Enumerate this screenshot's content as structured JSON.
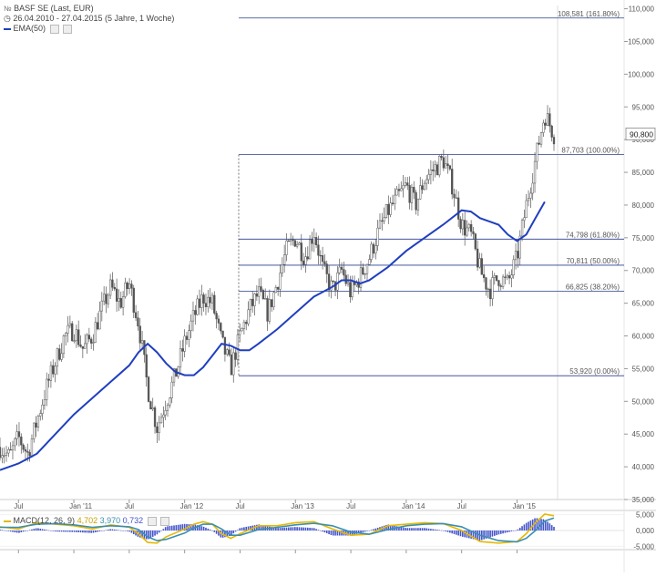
{
  "header": {
    "instrument": "BASF SE (Last, EUR)",
    "range": "26.04.2010 - 27.04.2015 (5 Jahre, 1 Woche)",
    "ema_label": "EMA(50)",
    "colors": {
      "ema": "#1f3fbf",
      "fib": "#2a3f8f"
    }
  },
  "chart_data": [
    {
      "type": "candlestick",
      "title": "",
      "x_ticks": [
        "Jul",
        "Jan '11",
        "Jul",
        "Jan '12",
        "Jul",
        "Jan '13",
        "Jul",
        "Jan '14",
        "Jul",
        "Jan '15"
      ],
      "y_ticks": [
        "35,000",
        "40,000",
        "45,000",
        "50,000",
        "55,000",
        "60,000",
        "65,000",
        "70,000",
        "75,000",
        "80,000",
        "85,000",
        "90,000",
        "95,000",
        "100,000",
        "105,000",
        "110,000"
      ],
      "ylim": [
        35,
        110.5
      ],
      "last_price_label": "90,800",
      "last_price": 90.8,
      "series": [
        {
          "name": "EMA(50)",
          "values_by_month": [
            {
              "t": 0,
              "v": 39.5
            },
            {
              "t": 2,
              "v": 40.5
            },
            {
              "t": 4,
              "v": 42
            },
            {
              "t": 6,
              "v": 45
            },
            {
              "t": 8,
              "v": 48
            },
            {
              "t": 10,
              "v": 50.5
            },
            {
              "t": 12,
              "v": 53
            },
            {
              "t": 14,
              "v": 55.5
            },
            {
              "t": 15,
              "v": 57.5
            },
            {
              "t": 16,
              "v": 58.8
            },
            {
              "t": 17,
              "v": 57.5
            },
            {
              "t": 18,
              "v": 55.8
            },
            {
              "t": 19,
              "v": 54.5
            },
            {
              "t": 20,
              "v": 54
            },
            {
              "t": 21,
              "v": 54
            },
            {
              "t": 22,
              "v": 55.2
            },
            {
              "t": 23,
              "v": 57
            },
            {
              "t": 24,
              "v": 58.8
            },
            {
              "t": 25,
              "v": 58.5
            },
            {
              "t": 26,
              "v": 57.8
            },
            {
              "t": 27,
              "v": 57.8
            },
            {
              "t": 28,
              "v": 58.8
            },
            {
              "t": 30,
              "v": 61
            },
            {
              "t": 32,
              "v": 63.5
            },
            {
              "t": 34,
              "v": 66
            },
            {
              "t": 36,
              "v": 67.5
            },
            {
              "t": 37,
              "v": 68.5
            },
            {
              "t": 38,
              "v": 68.5
            },
            {
              "t": 39,
              "v": 68
            },
            {
              "t": 40,
              "v": 68.5
            },
            {
              "t": 42,
              "v": 70.5
            },
            {
              "t": 44,
              "v": 73
            },
            {
              "t": 46,
              "v": 75
            },
            {
              "t": 48,
              "v": 77
            },
            {
              "t": 50,
              "v": 79.2
            },
            {
              "t": 51,
              "v": 79
            },
            {
              "t": 52,
              "v": 78
            },
            {
              "t": 53,
              "v": 77.5
            },
            {
              "t": 54,
              "v": 77
            },
            {
              "t": 55,
              "v": 75.5
            },
            {
              "t": 56,
              "v": 74.5
            },
            {
              "t": 57,
              "v": 75.5
            },
            {
              "t": 58,
              "v": 78
            },
            {
              "t": 59,
              "v": 80.5
            }
          ]
        }
      ],
      "fibonacci_levels": [
        {
          "price": 108.581,
          "label": "108,581 (161.80%)"
        },
        {
          "price": 87.703,
          "label": "87,703 (100.00%)"
        },
        {
          "price": 74.798,
          "label": "74,798 (61.80%)"
        },
        {
          "price": 70.811,
          "label": "70,811 (50.00%)"
        },
        {
          "price": 66.825,
          "label": "66,825 (38.20%)"
        },
        {
          "price": 53.92,
          "label": "53,920 (0.00%)"
        }
      ],
      "price_path_by_month": [
        {
          "t": 0,
          "v": 43
        },
        {
          "t": 1,
          "v": 41.5
        },
        {
          "t": 2,
          "v": 44.5
        },
        {
          "t": 3,
          "v": 42
        },
        {
          "t": 4,
          "v": 47
        },
        {
          "t": 5,
          "v": 52
        },
        {
          "t": 6,
          "v": 56
        },
        {
          "t": 7,
          "v": 60
        },
        {
          "t": 8,
          "v": 61
        },
        {
          "t": 9,
          "v": 58
        },
        {
          "t": 10,
          "v": 60
        },
        {
          "t": 11,
          "v": 64
        },
        {
          "t": 12,
          "v": 67.5
        },
        {
          "t": 13,
          "v": 65
        },
        {
          "t": 14,
          "v": 68
        },
        {
          "t": 15,
          "v": 62
        },
        {
          "t": 16,
          "v": 52
        },
        {
          "t": 17,
          "v": 46
        },
        {
          "t": 18,
          "v": 50
        },
        {
          "t": 19,
          "v": 54
        },
        {
          "t": 20,
          "v": 59
        },
        {
          "t": 21,
          "v": 63
        },
        {
          "t": 22,
          "v": 66
        },
        {
          "t": 23,
          "v": 65
        },
        {
          "t": 24,
          "v": 59
        },
        {
          "t": 25,
          "v": 55
        },
        {
          "t": 26,
          "v": 60
        },
        {
          "t": 27,
          "v": 64
        },
        {
          "t": 28,
          "v": 66.5
        },
        {
          "t": 29,
          "v": 63.5
        },
        {
          "t": 30,
          "v": 68
        },
        {
          "t": 31,
          "v": 73
        },
        {
          "t": 32,
          "v": 75
        },
        {
          "t": 33,
          "v": 72
        },
        {
          "t": 34,
          "v": 76
        },
        {
          "t": 35,
          "v": 70
        },
        {
          "t": 36,
          "v": 67
        },
        {
          "t": 37,
          "v": 70
        },
        {
          "t": 38,
          "v": 66.5
        },
        {
          "t": 39,
          "v": 69
        },
        {
          "t": 40,
          "v": 72
        },
        {
          "t": 41,
          "v": 76
        },
        {
          "t": 42,
          "v": 79
        },
        {
          "t": 43,
          "v": 81
        },
        {
          "t": 44,
          "v": 83
        },
        {
          "t": 45,
          "v": 80
        },
        {
          "t": 46,
          "v": 84
        },
        {
          "t": 47,
          "v": 85.5
        },
        {
          "t": 48,
          "v": 87
        },
        {
          "t": 49,
          "v": 83
        },
        {
          "t": 50,
          "v": 77
        },
        {
          "t": 51,
          "v": 75.5
        },
        {
          "t": 52,
          "v": 70
        },
        {
          "t": 53,
          "v": 67
        },
        {
          "t": 54,
          "v": 69
        },
        {
          "t": 55,
          "v": 68
        },
        {
          "t": 56,
          "v": 72
        },
        {
          "t": 57,
          "v": 80
        },
        {
          "t": 58,
          "v": 87
        },
        {
          "t": 59,
          "v": 94
        },
        {
          "t": 60,
          "v": 90.8
        }
      ]
    },
    {
      "type": "macd",
      "legend": {
        "name": "MACD(12, 26, 9)",
        "macd": "4,702",
        "signal": "3,970",
        "hist": "0,732"
      },
      "macd_value": 4.702,
      "signal_value": 3.97,
      "hist_value": 0.732,
      "y_ticks": [
        "5,000",
        "0,000",
        "-5,000"
      ],
      "ylim": [
        -5.5,
        5.5
      ],
      "macd_by_month": [
        {
          "t": 0,
          "v": 1.2
        },
        {
          "t": 2,
          "v": 0.5
        },
        {
          "t": 4,
          "v": 2.5
        },
        {
          "t": 6,
          "v": 2
        },
        {
          "t": 8,
          "v": 1.5
        },
        {
          "t": 10,
          "v": 0.5
        },
        {
          "t": 12,
          "v": 1.8
        },
        {
          "t": 14,
          "v": 1
        },
        {
          "t": 15,
          "v": -1
        },
        {
          "t": 16,
          "v": -3.8
        },
        {
          "t": 17,
          "v": -4
        },
        {
          "t": 18,
          "v": -2
        },
        {
          "t": 20,
          "v": 0.5
        },
        {
          "t": 21,
          "v": 2
        },
        {
          "t": 22,
          "v": 2.8
        },
        {
          "t": 23,
          "v": 2
        },
        {
          "t": 24,
          "v": -1
        },
        {
          "t": 25,
          "v": -2.5
        },
        {
          "t": 26,
          "v": -1
        },
        {
          "t": 28,
          "v": 1.5
        },
        {
          "t": 30,
          "v": 1.5
        },
        {
          "t": 32,
          "v": 2.5
        },
        {
          "t": 34,
          "v": 2.8
        },
        {
          "t": 36,
          "v": 0.5
        },
        {
          "t": 38,
          "v": -1.5
        },
        {
          "t": 40,
          "v": -1.2
        },
        {
          "t": 42,
          "v": 1.5
        },
        {
          "t": 44,
          "v": 2
        },
        {
          "t": 46,
          "v": 2.5
        },
        {
          "t": 48,
          "v": 2.2
        },
        {
          "t": 50,
          "v": 0
        },
        {
          "t": 52,
          "v": -3.5
        },
        {
          "t": 54,
          "v": -4
        },
        {
          "t": 56,
          "v": -3.5
        },
        {
          "t": 57,
          "v": -1
        },
        {
          "t": 58,
          "v": 2.5
        },
        {
          "t": 59,
          "v": 5.2
        },
        {
          "t": 60,
          "v": 4.7
        }
      ],
      "signal_by_month": [
        {
          "t": 0,
          "v": 1
        },
        {
          "t": 2,
          "v": 1
        },
        {
          "t": 4,
          "v": 2
        },
        {
          "t": 6,
          "v": 2.2
        },
        {
          "t": 8,
          "v": 1.8
        },
        {
          "t": 10,
          "v": 1
        },
        {
          "t": 12,
          "v": 1.5
        },
        {
          "t": 14,
          "v": 1.2
        },
        {
          "t": 15,
          "v": 0.3
        },
        {
          "t": 16,
          "v": -2
        },
        {
          "t": 17,
          "v": -3.2
        },
        {
          "t": 18,
          "v": -2.8
        },
        {
          "t": 20,
          "v": -0.8
        },
        {
          "t": 21,
          "v": 0.8
        },
        {
          "t": 22,
          "v": 2
        },
        {
          "t": 23,
          "v": 2
        },
        {
          "t": 24,
          "v": 0.5
        },
        {
          "t": 25,
          "v": -1.5
        },
        {
          "t": 26,
          "v": -1.5
        },
        {
          "t": 28,
          "v": 0.3
        },
        {
          "t": 30,
          "v": 1
        },
        {
          "t": 32,
          "v": 1.8
        },
        {
          "t": 34,
          "v": 2.3
        },
        {
          "t": 36,
          "v": 1.5
        },
        {
          "t": 38,
          "v": -0.5
        },
        {
          "t": 40,
          "v": -1.2
        },
        {
          "t": 42,
          "v": 0.3
        },
        {
          "t": 44,
          "v": 1.5
        },
        {
          "t": 46,
          "v": 2
        },
        {
          "t": 48,
          "v": 2.2
        },
        {
          "t": 50,
          "v": 1.2
        },
        {
          "t": 52,
          "v": -1.5
        },
        {
          "t": 54,
          "v": -3.2
        },
        {
          "t": 56,
          "v": -3.6
        },
        {
          "t": 57,
          "v": -2.5
        },
        {
          "t": 58,
          "v": 0
        },
        {
          "t": 59,
          "v": 3
        },
        {
          "t": 60,
          "v": 3.97
        }
      ]
    }
  ]
}
